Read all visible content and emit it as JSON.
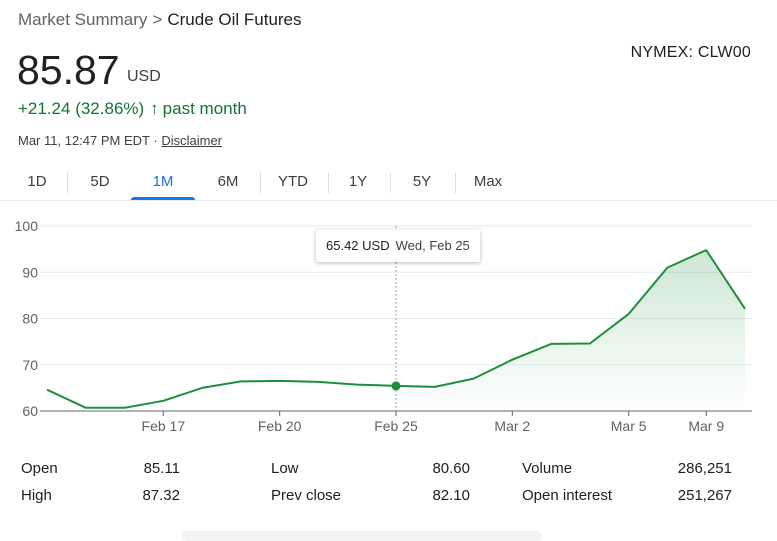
{
  "breadcrumb": {
    "root": "Market Summary",
    "separator": ">",
    "current": "Crude Oil Futures"
  },
  "ticker": "NYMEX: CLW00",
  "quote": {
    "price": "85.87",
    "currency": "USD",
    "change": "+21.24 (32.86%)",
    "change_arrow": "↑",
    "change_period": "past month",
    "timestamp": "Mar 11, 12:47 PM EDT",
    "timestamp_sep": "·",
    "disclaimer": "Disclaimer"
  },
  "tabs": [
    {
      "label": "1D",
      "active": false
    },
    {
      "label": "5D",
      "active": false
    },
    {
      "label": "1M",
      "active": true
    },
    {
      "label": "6M",
      "active": false
    },
    {
      "label": "YTD",
      "active": false
    },
    {
      "label": "1Y",
      "active": false
    },
    {
      "label": "5Y",
      "active": false
    },
    {
      "label": "Max",
      "active": false
    }
  ],
  "tooltip": {
    "value": "65.42 USD",
    "date": "Wed, Feb 25"
  },
  "colors": {
    "line": "#1e8e3e",
    "positive": "#137333",
    "accent": "#1a73e8",
    "grid": "#e8eaed"
  },
  "chart_data": {
    "type": "line",
    "ylim": [
      60,
      100
    ],
    "yticks": [
      60,
      70,
      80,
      90,
      100
    ],
    "xlabels": [
      "Feb 17",
      "Feb 20",
      "Feb 25",
      "Mar 2",
      "Mar 5",
      "Mar 9"
    ],
    "x": [
      "Feb 11",
      "Feb 12",
      "Feb 13",
      "Feb 17",
      "Feb 18",
      "Feb 19",
      "Feb 20",
      "Feb 23",
      "Feb 24",
      "Feb 25",
      "Feb 26",
      "Feb 27",
      "Mar 2",
      "Mar 3",
      "Mar 4",
      "Mar 5",
      "Mar 6",
      "Mar 9",
      "Mar 10"
    ],
    "values": [
      64.6,
      60.7,
      60.7,
      62.2,
      65.0,
      66.4,
      66.5,
      66.3,
      65.7,
      65.42,
      65.2,
      67.0,
      71.1,
      74.5,
      74.6,
      81.0,
      91.0,
      94.8,
      82.1
    ],
    "highlight": {
      "x": "Feb 25",
      "value": 65.42
    },
    "grid": true
  },
  "stats": [
    {
      "label": "Open",
      "value": "85.11"
    },
    {
      "label": "High",
      "value": "87.32"
    },
    {
      "label": "Low",
      "value": "80.60"
    },
    {
      "label": "Prev close",
      "value": "82.10"
    },
    {
      "label": "Volume",
      "value": "286,251"
    },
    {
      "label": "Open interest",
      "value": "251,267"
    }
  ]
}
